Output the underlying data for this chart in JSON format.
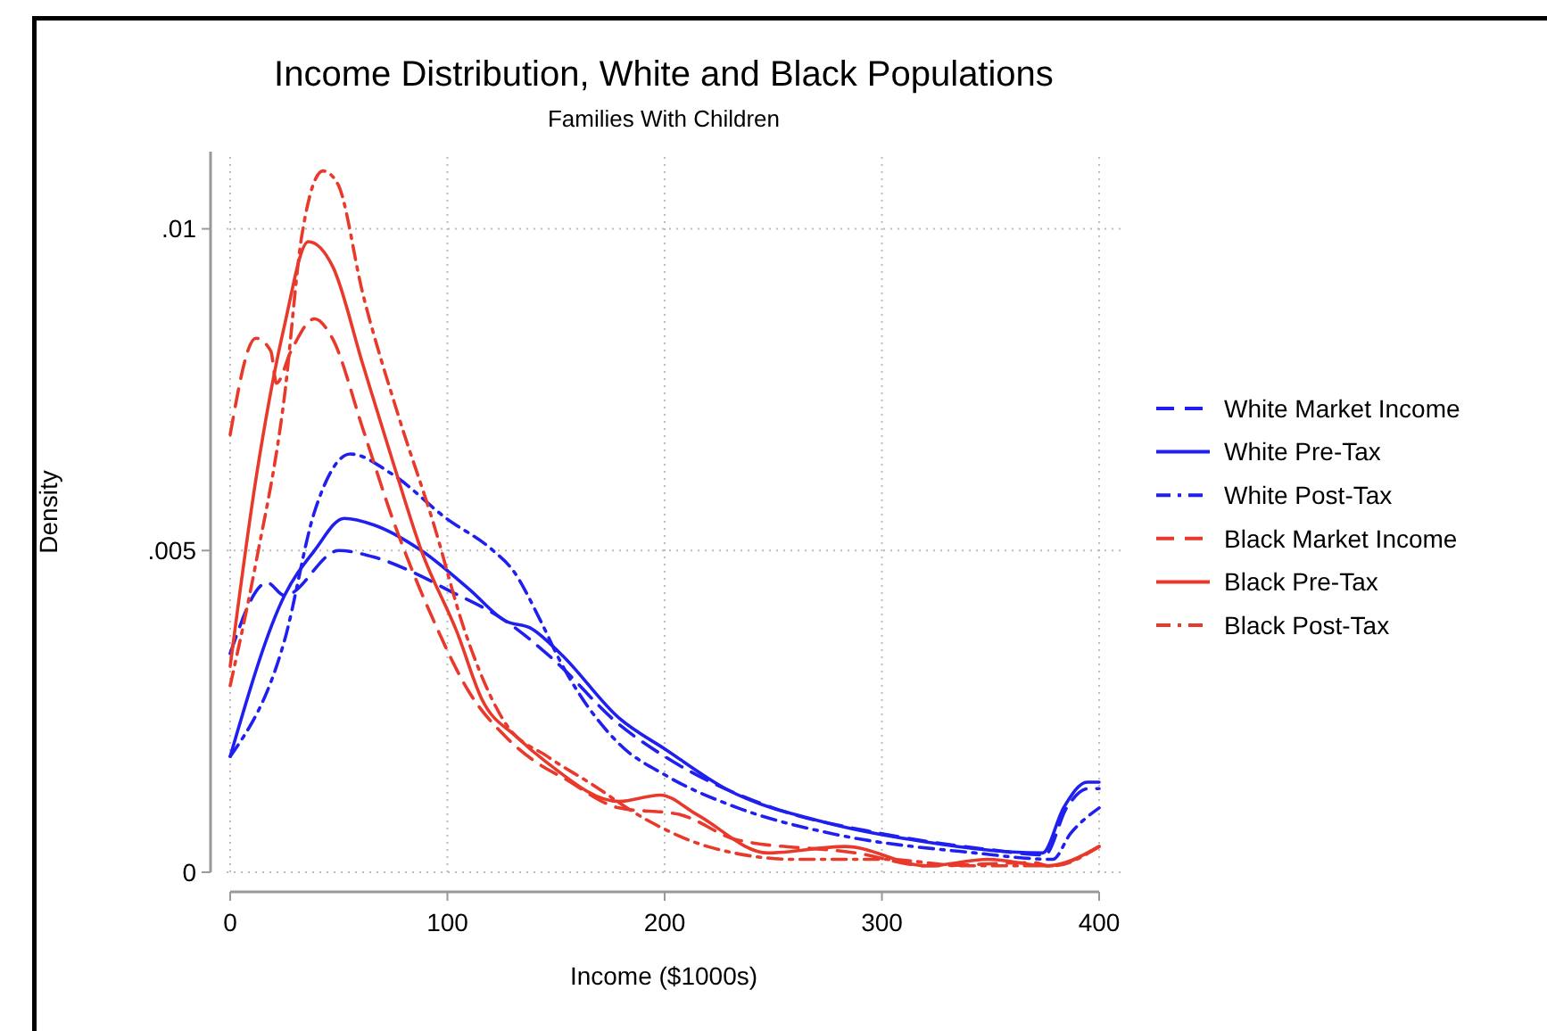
{
  "chart_data": {
    "type": "line",
    "title": "Income Distribution, White and Black Populations",
    "subtitle": "Families With Children",
    "xlabel": "Income ($1000s)",
    "ylabel": "Density",
    "xlim": [
      0,
      400
    ],
    "xticks": [
      0,
      100,
      200,
      300,
      400
    ],
    "ylim": [
      0,
      0.0112
    ],
    "yticks": [
      0,
      {
        "value": 0.005,
        "label": ".005"
      },
      {
        "value": 0.01,
        "label": ".01"
      }
    ],
    "grid": true,
    "legend": "right",
    "marker": "none",
    "series": [
      {
        "name": "White Market Income",
        "color": "#1f1ff0",
        "line_style": "dashed",
        "x": [
          0,
          17,
          25,
          50,
          66,
          88,
          99.5,
          127,
          149,
          178.9,
          200,
          250,
          300,
          350,
          375,
          385,
          395,
          400
        ],
        "values": [
          0.0034,
          0.0045,
          0.0043,
          0.005,
          0.0049,
          0.0046,
          0.0044,
          0.0039,
          0.0033,
          0.0023,
          0.0018,
          0.001,
          0.0006,
          0.00035,
          0.00027,
          0.001,
          0.0013,
          0.0013
        ]
      },
      {
        "name": "White Pre-Tax",
        "color": "#1f1ff0",
        "line_style": "solid",
        "x": [
          0,
          25,
          38.8,
          52.5,
          66,
          88,
          110,
          127,
          138,
          152,
          178.9,
          200.8,
          228,
          277,
          315,
          374,
          383.6,
          394.5,
          400
        ],
        "values": [
          0.0018,
          0.0043,
          0.005,
          0.0055,
          0.0054,
          0.005,
          0.0044,
          0.0039,
          0.0038,
          0.0034,
          0.0024,
          0.0019,
          0.0013,
          0.00075,
          0.0005,
          0.0003,
          0.001,
          0.0014,
          0.0014
        ]
      },
      {
        "name": "White Post-Tax",
        "color": "#1f1ff0",
        "line_style": "dashdot",
        "x": [
          0,
          25,
          38.8,
          55.3,
          74,
          99.5,
          121,
          130,
          143,
          151.6,
          178.9,
          200.8,
          233.7,
          277,
          343,
          378.6,
          386.8,
          400
        ],
        "values": [
          0.0018,
          0.0036,
          0.0056,
          0.0065,
          0.0062,
          0.0055,
          0.005,
          0.0047,
          0.0039,
          0.0033,
          0.002,
          0.0015,
          0.001,
          0.0006,
          0.0003,
          0.0002,
          0.0006,
          0.001
        ]
      },
      {
        "name": "Black Market Income",
        "color": "#e8392b",
        "line_style": "dashed",
        "x": [
          0,
          11.8,
          18.7,
          21.3,
          28,
          38.8,
          47,
          61,
          74.7,
          93.8,
          110,
          127,
          146,
          151.6,
          179,
          206.6,
          233.7,
          288,
          321,
          370,
          376.7,
          400
        ],
        "values": [
          0.0068,
          0.0083,
          0.0081,
          0.0076,
          0.0081,
          0.0086,
          0.0083,
          0.0069,
          0.0055,
          0.0039,
          0.0028,
          0.0021,
          0.0016,
          0.0015,
          0.001,
          0.0009,
          0.0005,
          0.0003,
          0.0001,
          0.00015,
          0.0001,
          0.0004
        ]
      },
      {
        "name": "Black Pre-Tax",
        "color": "#e8392b",
        "line_style": "solid",
        "x": [
          0,
          11.8,
          25,
          36,
          47.4,
          61,
          74.7,
          88,
          104.8,
          115.7,
          132,
          146,
          179,
          198,
          214.7,
          247.5,
          283,
          321,
          349,
          376,
          400
        ],
        "values": [
          0.0032,
          0.0061,
          0.0085,
          0.0098,
          0.0094,
          0.0079,
          0.0064,
          0.005,
          0.0037,
          0.0027,
          0.0021,
          0.0017,
          0.0011,
          0.0012,
          0.0009,
          0.0003,
          0.0004,
          0.0001,
          0.0002,
          0.0001,
          0.0004
        ]
      },
      {
        "name": "Black Post-Tax",
        "color": "#e8392b",
        "line_style": "dashdot",
        "x": [
          0,
          11.8,
          25,
          33,
          42.7,
          49.5,
          61,
          77.4,
          93.8,
          107.5,
          127,
          146,
          165,
          192.5,
          219.8,
          260.8,
          302,
          338,
          378.6,
          400
        ],
        "values": [
          0.0029,
          0.0048,
          0.0074,
          0.0099,
          0.0109,
          0.0107,
          0.009,
          0.0071,
          0.0054,
          0.0038,
          0.0023,
          0.0018,
          0.0014,
          0.0008,
          0.0004,
          0.0002,
          0.0002,
          0.0001,
          0.0001,
          0.0004
        ]
      }
    ]
  }
}
